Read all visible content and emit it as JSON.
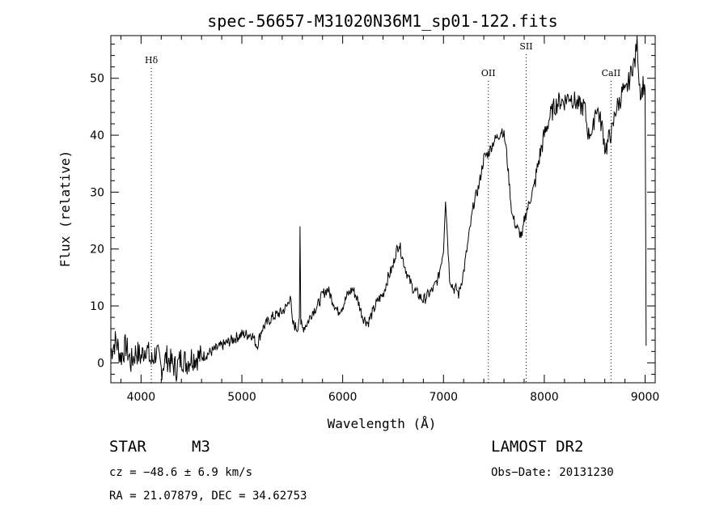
{
  "chart_data": {
    "type": "line",
    "title": "spec-56657-M31020N36M1_sp01-122.fits",
    "xlabel": "Wavelength (Å)",
    "ylabel": "Flux (relative)",
    "xlim": [
      3700,
      9100
    ],
    "ylim": [
      -3.5,
      57.5
    ],
    "xticks": [
      4000,
      5000,
      6000,
      7000,
      8000,
      9000
    ],
    "yticks": [
      0,
      10,
      20,
      30,
      40,
      50
    ],
    "grid": false,
    "legend": "none",
    "line_color": "#000000",
    "line_markers": [
      {
        "label": "Hδ",
        "x": 4102
      },
      {
        "label": "OII",
        "x": 7445
      },
      {
        "label": "SII",
        "x": 7820
      },
      {
        "label": "CaII",
        "x": 8662
      }
    ],
    "series": [
      {
        "x": [
          3700,
          3750,
          3800,
          3850,
          3900,
          3950,
          4000,
          4050,
          4100,
          4150,
          4200,
          4250,
          4300,
          4350,
          4400,
          4450,
          4500,
          4600,
          4700,
          4800,
          4900,
          5000,
          5100,
          5150,
          5200,
          5250,
          5300,
          5400,
          5450,
          5480,
          5500,
          5550,
          5570,
          5577,
          5585,
          5600,
          5650,
          5700,
          5750,
          5800,
          5850,
          5900,
          5950,
          6000,
          6050,
          6100,
          6150,
          6200,
          6250,
          6300,
          6350,
          6400,
          6450,
          6500,
          6520,
          6560,
          6600,
          6650,
          6700,
          6750,
          6800,
          6850,
          6900,
          6950,
          7000,
          7020,
          7040,
          7060,
          7080,
          7100,
          7130,
          7150,
          7200,
          7250,
          7300,
          7350,
          7400,
          7450,
          7500,
          7550,
          7580,
          7600,
          7620,
          7650,
          7680,
          7700,
          7720,
          7750,
          7780,
          7800,
          7830,
          7850,
          7880,
          7900,
          7930,
          7950,
          8000,
          8050,
          8100,
          8150,
          8200,
          8250,
          8300,
          8350,
          8400,
          8420,
          8440,
          8460,
          8480,
          8500,
          8520,
          8550,
          8580,
          8600,
          8620,
          8650,
          8680,
          8700,
          8720,
          8750,
          8780,
          8800,
          8830,
          8850,
          8870,
          8900,
          8920,
          8940,
          8960,
          8980,
          9000,
          9010
        ],
        "y": [
          2,
          4,
          1,
          3,
          0,
          2,
          1,
          3,
          0,
          2,
          -1,
          1,
          0,
          -1,
          1,
          0,
          1,
          1,
          2,
          3,
          4,
          5,
          5,
          3,
          6,
          7,
          8,
          9,
          10,
          12,
          7,
          6,
          8,
          24,
          7,
          6,
          7,
          9,
          10,
          12,
          13,
          11,
          9,
          10,
          12,
          13,
          11,
          8,
          7,
          9,
          11,
          12,
          15,
          17,
          19,
          21,
          18,
          15,
          13,
          12,
          11,
          12,
          13,
          15,
          20,
          29,
          22,
          15,
          14,
          13,
          13,
          12,
          16,
          22,
          28,
          31,
          36,
          37,
          39,
          40,
          41,
          40,
          38,
          32,
          26,
          25,
          24,
          23,
          22,
          25,
          27,
          28,
          30,
          31,
          34,
          36,
          40,
          43,
          45,
          46,
          46,
          47,
          46,
          45,
          45,
          42,
          40,
          41,
          40,
          44,
          45,
          43,
          41,
          38,
          38,
          40,
          41,
          44,
          45,
          46,
          48,
          47,
          49,
          50,
          52,
          53,
          57,
          50,
          47,
          49,
          48,
          3
        ]
      }
    ]
  },
  "info": {
    "class_label": "STAR",
    "subclass_label": "M3",
    "survey": "LAMOST DR2",
    "cz": "cz = −48.6 ± 6.9 km/s",
    "obs_date": "Obs−Date: 20131230",
    "radec": "RA =  21.07879, DEC =  34.62753"
  }
}
